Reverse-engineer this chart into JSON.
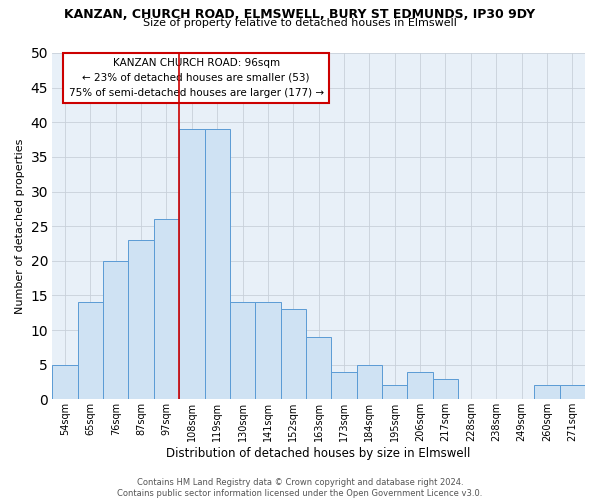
{
  "title": "KANZAN, CHURCH ROAD, ELMSWELL, BURY ST EDMUNDS, IP30 9DY",
  "subtitle": "Size of property relative to detached houses in Elmswell",
  "xlabel": "Distribution of detached houses by size in Elmswell",
  "ylabel": "Number of detached properties",
  "bar_labels": [
    "54sqm",
    "65sqm",
    "76sqm",
    "87sqm",
    "97sqm",
    "108sqm",
    "119sqm",
    "130sqm",
    "141sqm",
    "152sqm",
    "163sqm",
    "173sqm",
    "184sqm",
    "195sqm",
    "206sqm",
    "217sqm",
    "228sqm",
    "238sqm",
    "249sqm",
    "260sqm",
    "271sqm"
  ],
  "bar_values": [
    5,
    14,
    20,
    23,
    26,
    39,
    39,
    14,
    14,
    13,
    9,
    4,
    5,
    2,
    4,
    3,
    0,
    0,
    0,
    2,
    2
  ],
  "bar_color": "#cfe2f3",
  "bar_edge_color": "#5b9bd5",
  "vline_x": 4.5,
  "vline_color": "#cc0000",
  "ylim": [
    0,
    50
  ],
  "yticks": [
    0,
    5,
    10,
    15,
    20,
    25,
    30,
    35,
    40,
    45,
    50
  ],
  "annotation_title": "KANZAN CHURCH ROAD: 96sqm",
  "annotation_line1": "← 23% of detached houses are smaller (53)",
  "annotation_line2": "75% of semi-detached houses are larger (177) →",
  "annotation_box_color": "#ffffff",
  "annotation_box_edge_color": "#cc0000",
  "footer_line1": "Contains HM Land Registry data © Crown copyright and database right 2024.",
  "footer_line2": "Contains public sector information licensed under the Open Government Licence v3.0.",
  "background_color": "#ffffff",
  "plot_bg_color": "#e8f0f8",
  "grid_color": "#c8d0da"
}
